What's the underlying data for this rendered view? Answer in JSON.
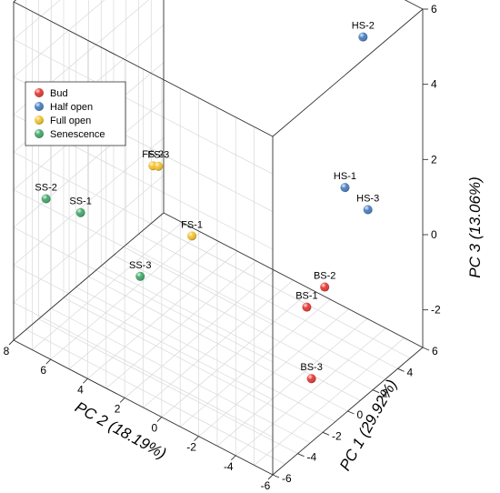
{
  "chart_data": {
    "type": "scatter",
    "projection": "3d",
    "axes": {
      "pc1": {
        "label": "PC 1 (29.92%)",
        "range": [
          -6,
          6
        ],
        "ticks": [
          -6,
          -4,
          -2,
          0,
          2,
          4,
          6
        ]
      },
      "pc2": {
        "label": "PC 2 (18.19%)",
        "range": [
          -6,
          8
        ],
        "ticks": [
          -6,
          -4,
          -2,
          0,
          2,
          4,
          6,
          8
        ]
      },
      "pc3": {
        "label": "PC 3 (13.06%)",
        "range": [
          -3,
          6
        ],
        "ticks": [
          -2,
          0,
          2,
          4,
          6
        ]
      }
    },
    "grid": true,
    "legend": {
      "placement": "top-left",
      "entries": [
        {
          "name": "Bud",
          "color": "#e53935"
        },
        {
          "name": "Half open",
          "color": "#4a7ec0"
        },
        {
          "name": "Full open",
          "color": "#f2c230"
        },
        {
          "name": "Senescence",
          "color": "#43a86a"
        }
      ]
    },
    "series": [
      {
        "name": "Bud",
        "color": "#e53935",
        "points": [
          {
            "label": "BS-1",
            "pc1": 2.2,
            "pc2": -2.3,
            "pc3": -1.8
          },
          {
            "label": "BS-2",
            "pc1": 2.6,
            "pc2": -3.0,
            "pc3": -1.2
          },
          {
            "label": "BS-3",
            "pc1": 0.8,
            "pc2": -3.5,
            "pc3": -3.0
          }
        ]
      },
      {
        "name": "Half open",
        "color": "#4a7ec0",
        "points": [
          {
            "label": "HS-1",
            "pc1": 2.0,
            "pc2": -4.5,
            "pc3": 2.0
          },
          {
            "label": "HS-2",
            "pc1": 3.0,
            "pc2": -4.8,
            "pc3": 5.8
          },
          {
            "label": "HS-3",
            "pc1": 2.5,
            "pc2": -5.4,
            "pc3": 1.5
          }
        ]
      },
      {
        "name": "Full open",
        "color": "#f2c230",
        "points": [
          {
            "label": "FS-1",
            "pc1": -2.4,
            "pc2": 0.8,
            "pc3": 0.6
          },
          {
            "label": "FS-2",
            "pc1": -3.0,
            "pc2": 2.5,
            "pc3": 2.2
          },
          {
            "label": "FS-3",
            "pc1": -3.3,
            "pc2": 2.0,
            "pc3": 2.4
          }
        ]
      },
      {
        "name": "Senescence",
        "color": "#43a86a",
        "points": [
          {
            "label": "SS-1",
            "pc1": -4.2,
            "pc2": 5.6,
            "pc3": 0.5
          },
          {
            "label": "SS-2",
            "pc1": -4.0,
            "pc2": 7.6,
            "pc3": 0.3
          },
          {
            "label": "SS-3",
            "pc1": -1.5,
            "pc2": 4.2,
            "pc3": -1.6
          }
        ]
      }
    ]
  }
}
